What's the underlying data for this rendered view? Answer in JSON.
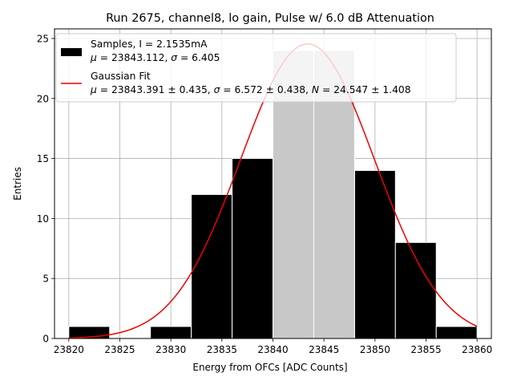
{
  "chart_data": {
    "type": "bar",
    "title": "Run 2675, channel8, lo gain, Pulse w/ 6.0 dB Attenuation",
    "xlabel": "Energy from OFCs [ADC Counts]",
    "ylabel": "Entries",
    "xlim": [
      23818.6,
      23861.4
    ],
    "ylim": [
      0,
      25.8
    ],
    "x_ticks": [
      23820,
      23825,
      23830,
      23835,
      23840,
      23845,
      23850,
      23855,
      23860
    ],
    "x_tick_labels": [
      "23820",
      "23825",
      "23830",
      "23835",
      "23840",
      "23845",
      "23850",
      "23855",
      "23860"
    ],
    "y_ticks": [
      0,
      5,
      10,
      15,
      20,
      25
    ],
    "y_tick_labels": [
      "0",
      "5",
      "10",
      "15",
      "20",
      "25"
    ],
    "grid": true,
    "legend_position": "top-left",
    "series": [
      {
        "name": "Samples, I = 2.1535mA",
        "kind": "histogram",
        "color": "#000000",
        "bin_edges": [
          23820,
          23824,
          23828,
          23832,
          23836,
          23840,
          23844,
          23848,
          23852,
          23856,
          23860
        ],
        "values": [
          1,
          0,
          1,
          12,
          15,
          24,
          24,
          14,
          8,
          1
        ],
        "mu": 23843.112,
        "sigma": 6.405
      },
      {
        "name": "Gaussian Fit",
        "kind": "line",
        "color": "#ee0000",
        "mu": 23843.391,
        "mu_err": 0.435,
        "sigma": 6.572,
        "sigma_err": 0.438,
        "N": 24.547,
        "N_err": 1.408,
        "x_range": [
          23820,
          23860
        ]
      }
    ],
    "highlight": {
      "color": "#c8c8c8",
      "bin_edges": [
        23840,
        23844,
        23848
      ],
      "values": [
        24,
        24
      ]
    },
    "legend": [
      {
        "label": "Samples, I = 2.1535mA",
        "stats_line": {
          "mu": "23843.112",
          "sigma": "6.405"
        }
      },
      {
        "label": "Gaussian Fit",
        "stats_line": {
          "mu": "23843.391 ± 0.435",
          "sigma": "6.572 ± 0.438",
          "N": "24.547 ± 1.408"
        }
      }
    ]
  }
}
